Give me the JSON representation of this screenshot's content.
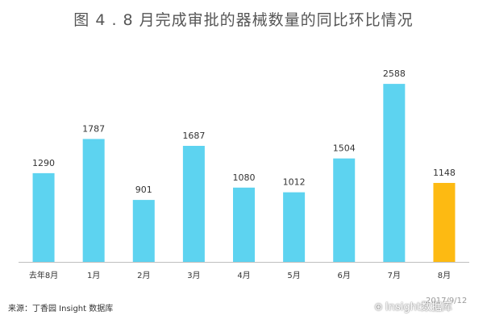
{
  "chart_data": {
    "type": "bar",
    "title": "图 4 . 8 月完成审批的器械数量的同比环比情况",
    "categories": [
      "去年8月",
      "1月",
      "2月",
      "3月",
      "4月",
      "5月",
      "6月",
      "7月",
      "8月"
    ],
    "values": [
      1290,
      1787,
      901,
      1687,
      1080,
      1012,
      1504,
      2588,
      1148
    ],
    "colors": [
      "#5DD3F0",
      "#5DD3F0",
      "#5DD3F0",
      "#5DD3F0",
      "#5DD3F0",
      "#5DD3F0",
      "#5DD3F0",
      "#5DD3F0",
      "#FDBA12"
    ],
    "ylim": [
      0,
      2800
    ],
    "xlabel": "",
    "ylabel": "",
    "grid": false
  },
  "footer": {
    "source": "来源：丁香园 Insight 数据库",
    "date": "2017/9/12",
    "watermark": "Insight数据库",
    "watermark_icon": "wechat-icon"
  }
}
